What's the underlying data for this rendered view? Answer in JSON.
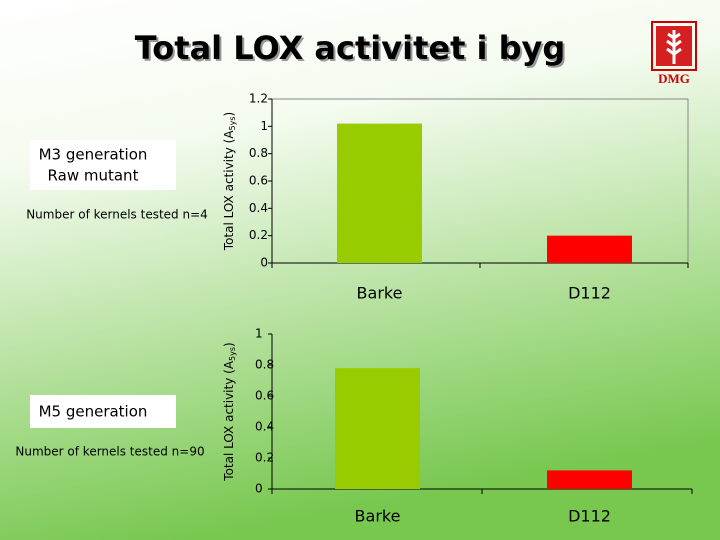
{
  "title": "Total LOX activitet i byg",
  "logo": "DMG",
  "m3": {
    "line1": "M3 generation",
    "line2": "Raw mutant",
    "kernels": "Number of kernels tested n=4"
  },
  "m5": {
    "line1": "M5 generation",
    "kernels": "Number of kernels tested n=90"
  },
  "chart_data": [
    {
      "type": "bar",
      "y_label": "Total LOX activity (A",
      "y_label_sub": "5ys",
      "y_label_end": ")",
      "categories": [
        "Barke",
        "D112"
      ],
      "values": [
        1.02,
        0.2
      ],
      "colors": [
        "#99cc00",
        "#ff0000"
      ],
      "ylim": [
        0,
        1.2
      ],
      "yticks": [
        0,
        0.2,
        0.4,
        0.6,
        0.8,
        1,
        1.2
      ],
      "grid": false
    },
    {
      "type": "bar",
      "y_label": "Total LOX activity (A",
      "y_label_sub": "5ys",
      "y_label_end": ")",
      "categories": [
        "Barke",
        "D112"
      ],
      "values": [
        0.78,
        0.12
      ],
      "colors": [
        "#99cc00",
        "#ff0000"
      ],
      "ylim": [
        0,
        1
      ],
      "yticks": [
        0,
        0.2,
        0.4,
        0.6,
        0.8,
        1
      ],
      "grid": false
    }
  ]
}
